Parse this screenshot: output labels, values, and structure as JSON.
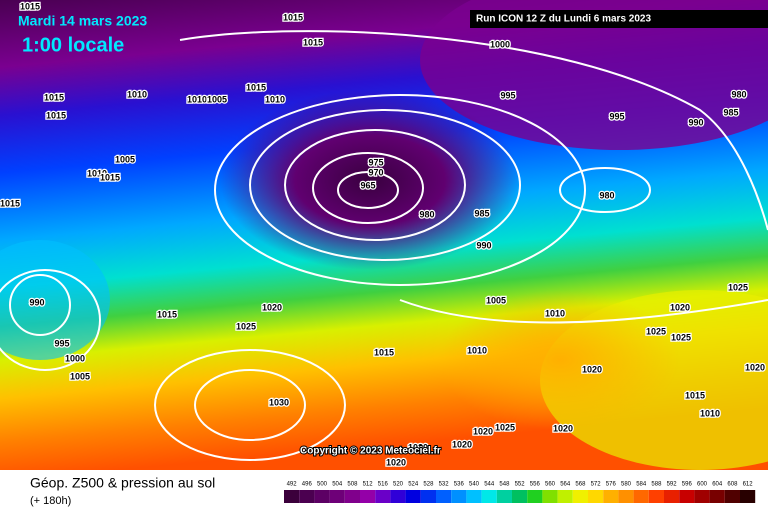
{
  "header": {
    "date": "Mardi 14 mars 2023",
    "time": "1:00 locale",
    "run": "Run ICON 12 Z du Lundi 6 mars 2023"
  },
  "copyright": "Copyright © 2023 Meteociel.fr",
  "footer": {
    "title": "Géop. Z500 & pression au sol",
    "lead": "(+ 180h)"
  },
  "isobars": [
    1015,
    1015,
    1015,
    1000,
    1015,
    1010,
    1015,
    1010,
    1005,
    1010,
    995,
    995,
    990,
    980,
    985,
    1015,
    1005,
    1010,
    1015,
    1015,
    975,
    970,
    965,
    980,
    985,
    980,
    990,
    990,
    995,
    1000,
    1005,
    1015,
    1020,
    1025,
    1005,
    1010,
    1020,
    1025,
    1025,
    1025,
    1015,
    1010,
    1020,
    1020,
    1030,
    1015,
    1010,
    1020,
    1020,
    1020,
    1025,
    1020,
    1020
  ],
  "color_scale": {
    "labels": [
      492,
      496,
      500,
      504,
      508,
      512,
      516,
      520,
      524,
      528,
      532,
      536,
      540,
      544,
      548,
      552,
      556,
      560,
      564,
      568,
      572,
      576,
      580,
      584,
      588,
      592,
      596,
      600,
      604,
      608,
      612
    ],
    "colors": [
      "#3b003b",
      "#4b0050",
      "#5c0064",
      "#6e0078",
      "#80008c",
      "#9400a8",
      "#6a00c8",
      "#3000d8",
      "#0000e0",
      "#0030f0",
      "#0060ff",
      "#0090ff",
      "#00c0ff",
      "#00e8e8",
      "#00d0a0",
      "#00c060",
      "#20d020",
      "#80e000",
      "#c0f000",
      "#f0f000",
      "#ffd800",
      "#ffb000",
      "#ff9000",
      "#ff6800",
      "#ff4000",
      "#e82000",
      "#c80000",
      "#a00000",
      "#780000",
      "#500000",
      "#280000"
    ]
  }
}
